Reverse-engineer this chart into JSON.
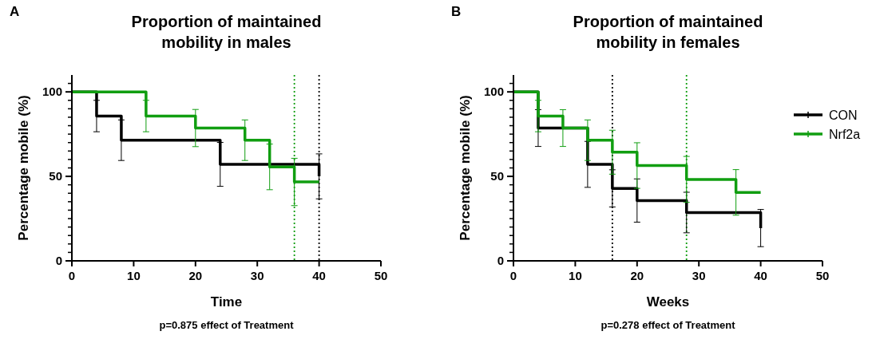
{
  "chart_data": [
    {
      "type": "step",
      "title": "Proportion of maintained mobility in males",
      "xlabel": "Time",
      "ylabel": "Percentage mobile (%)",
      "annotations": [
        "A",
        "p=0.875 effect of Treatment"
      ],
      "xlim": [
        0,
        50
      ],
      "xticks": [
        0,
        10,
        20,
        30,
        40,
        50
      ],
      "ylim": [
        0,
        110
      ],
      "yticks": [
        0,
        {
          "value": 5,
          "label": null
        },
        {
          "value": 10,
          "label": null
        },
        {
          "value": 15,
          "label": null
        },
        {
          "value": 20,
          "label": null
        },
        {
          "value": 25,
          "label": null
        },
        {
          "value": 30,
          "label": null
        },
        {
          "value": 35,
          "label": null
        },
        {
          "value": 40,
          "label": null
        },
        {
          "value": 45,
          "label": null
        },
        50,
        {
          "value": 55,
          "label": null
        },
        {
          "value": 60,
          "label": null
        },
        {
          "value": 65,
          "label": null
        },
        {
          "value": 70,
          "label": null
        },
        {
          "value": 75,
          "label": null
        },
        {
          "value": 80,
          "label": null
        },
        {
          "value": 85,
          "label": null
        },
        {
          "value": 90,
          "label": null
        },
        {
          "value": 95,
          "label": null
        },
        100,
        {
          "value": 105,
          "label": null
        }
      ],
      "legend": false,
      "grid": false,
      "series": [
        {
          "color": "#000000",
          "x": [
            0,
            4,
            8,
            24,
            40
          ],
          "values": [
            100,
            85.7,
            71.4,
            57.1,
            50
          ],
          "errors": [
            null,
            9.3,
            12,
            13,
            13.3
          ]
        },
        {
          "color": "#119e11",
          "x": [
            0,
            12,
            20,
            28,
            32,
            36,
            40
          ],
          "values": [
            100,
            85.7,
            78.6,
            71.4,
            55.6,
            46.7,
            46.7
          ],
          "errors": [
            null,
            9.3,
            11,
            12,
            13.5,
            14,
            null
          ]
        }
      ],
      "ref_lines": [
        {
          "axis": "x",
          "value": 36,
          "label": null,
          "color": "#119e11",
          "line_style": "dotted"
        },
        {
          "axis": "x",
          "value": 40,
          "label": null,
          "color": "#000000",
          "line_style": "dotted"
        }
      ]
    },
    {
      "type": "step",
      "title": "Proportion of maintained mobility in females",
      "xlabel": "Weeks",
      "ylabel": "Percentage mobile (%)",
      "annotations": [
        "B",
        "p=0.278 effect of Treatment"
      ],
      "xlim": [
        0,
        50
      ],
      "xticks": [
        0,
        10,
        20,
        30,
        40,
        50
      ],
      "ylim": [
        0,
        110
      ],
      "yticks": [
        0,
        {
          "value": 5,
          "label": null
        },
        {
          "value": 10,
          "label": null
        },
        {
          "value": 15,
          "label": null
        },
        {
          "value": 20,
          "label": null
        },
        {
          "value": 25,
          "label": null
        },
        {
          "value": 30,
          "label": null
        },
        {
          "value": 35,
          "label": null
        },
        {
          "value": 40,
          "label": null
        },
        {
          "value": 45,
          "label": null
        },
        50,
        {
          "value": 55,
          "label": null
        },
        {
          "value": 60,
          "label": null
        },
        {
          "value": 65,
          "label": null
        },
        {
          "value": 70,
          "label": null
        },
        {
          "value": 75,
          "label": null
        },
        {
          "value": 80,
          "label": null
        },
        {
          "value": 85,
          "label": null
        },
        {
          "value": 90,
          "label": null
        },
        {
          "value": 95,
          "label": null
        },
        100,
        {
          "value": 105,
          "label": null
        }
      ],
      "legend": "top right",
      "grid": false,
      "series": [
        {
          "name": "CON",
          "color": "#000000",
          "x": [
            0,
            4,
            12,
            16,
            20,
            28,
            40
          ],
          "values": [
            100,
            78.6,
            57.1,
            42.9,
            35.7,
            28.6,
            19.4
          ],
          "errors": [
            null,
            10.9,
            13.6,
            11,
            12.8,
            12,
            11
          ]
        },
        {
          "name": "Nrf2a",
          "color": "#119e11",
          "x": [
            0,
            4,
            8,
            12,
            16,
            20,
            28,
            36,
            40
          ],
          "values": [
            100,
            85.7,
            78.6,
            71.4,
            64.3,
            56.4,
            48.2,
            40.5,
            40.5
          ],
          "errors": [
            null,
            9.3,
            10.9,
            12,
            13,
            13.5,
            13.6,
            13.5,
            null
          ]
        }
      ],
      "ref_lines": [
        {
          "axis": "x",
          "value": 16,
          "label": null,
          "color": "#000000",
          "line_style": "dotted"
        },
        {
          "axis": "x",
          "value": 28,
          "label": null,
          "color": "#119e11",
          "line_style": "dotted"
        }
      ]
    }
  ]
}
